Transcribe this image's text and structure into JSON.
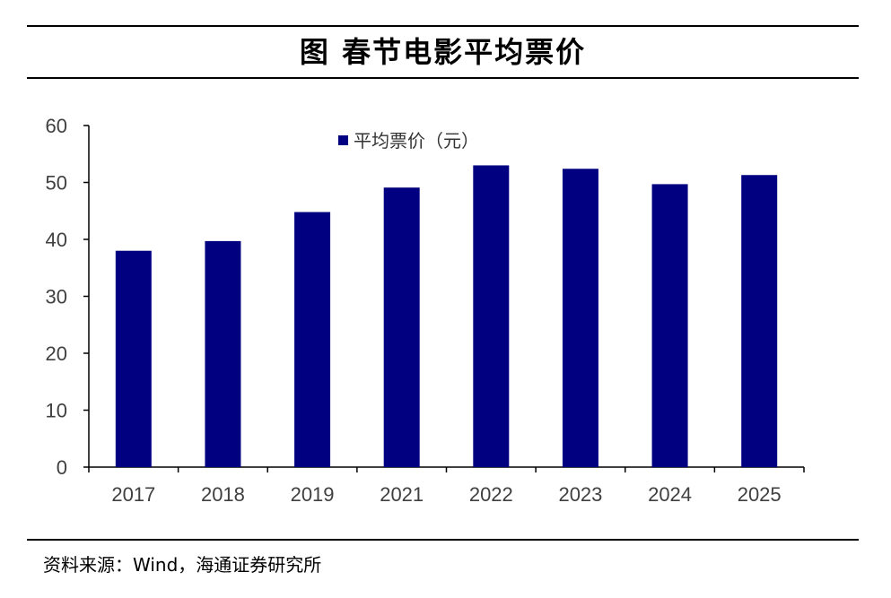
{
  "header": {
    "title": "图  春节电影平均票价"
  },
  "footer": {
    "source": "资料来源：Wind，海通证券研究所"
  },
  "chart_data": {
    "type": "bar",
    "categories": [
      "2017",
      "2018",
      "2019",
      "2021",
      "2022",
      "2023",
      "2024",
      "2025"
    ],
    "series": [
      {
        "name": "平均票价（元）",
        "values": [
          38.0,
          39.7,
          44.8,
          49.1,
          53.0,
          52.4,
          49.7,
          51.3
        ],
        "color": "#000080"
      }
    ],
    "title": "图  春节电影平均票价",
    "xlabel": "",
    "ylabel": "",
    "ylim": [
      0,
      60
    ],
    "yticks": [
      0,
      10,
      20,
      30,
      40,
      50,
      60
    ],
    "grid": false,
    "legend_position": "top-center"
  }
}
